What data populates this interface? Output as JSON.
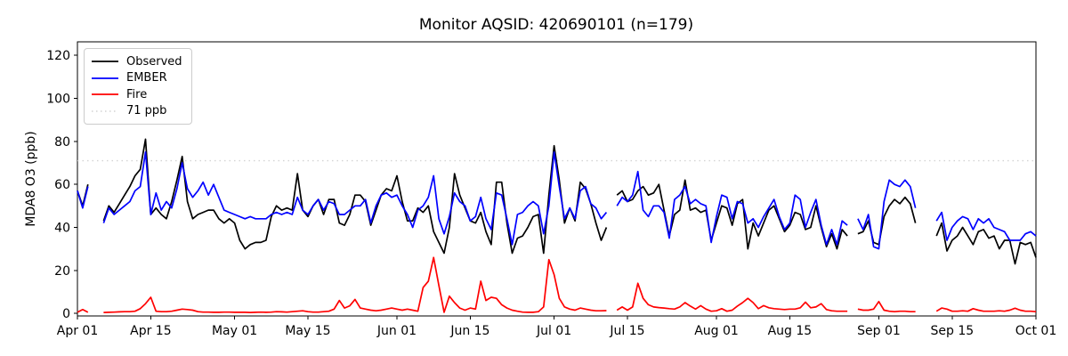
{
  "figure": {
    "title": "Monitor AQSID: 420690101 (n=179)"
  },
  "legend": {
    "position": "upper left"
  },
  "chart_data": {
    "type": "line",
    "title": "Monitor AQSID: 420690101 (n=179)",
    "xlabel": "",
    "ylabel": "MDA8 O3 (ppb)",
    "ylim": [
      -1.2,
      126.3
    ],
    "yticks": [
      0,
      20,
      40,
      60,
      80,
      100,
      120
    ],
    "grid": false,
    "legend_position": "upper left",
    "x_unit": "day index from Apr 01",
    "x_range_days": [
      0,
      183
    ],
    "x_tick_days": [
      0,
      14,
      30,
      44,
      61,
      75,
      91,
      105,
      122,
      136,
      153,
      167,
      183
    ],
    "x_tick_labels": [
      "Apr 01",
      "Apr 15",
      "May 01",
      "May 15",
      "Jun 01",
      "Jun 15",
      "Jul 01",
      "Jul 15",
      "Aug 01",
      "Aug 15",
      "Sep 01",
      "Sep 15",
      "Oct 01"
    ],
    "threshold": {
      "value": 71,
      "label": "71 ppb",
      "color": "#d3d3d3",
      "style": "dotted"
    },
    "note": "null values are missing days (gaps in lines)",
    "series": [
      {
        "name": "Observed",
        "color": "#000000",
        "style": "solid",
        "values": [
          57,
          50,
          60,
          null,
          null,
          43,
          50,
          47,
          51,
          55,
          59,
          64,
          67,
          81,
          46,
          49,
          46,
          44,
          52,
          62,
          73,
          52,
          44,
          46,
          47,
          48,
          48,
          44,
          42,
          44,
          42,
          34,
          30,
          32,
          33,
          33,
          34,
          45,
          50,
          48,
          49,
          48,
          65,
          48,
          45,
          50,
          53,
          46,
          53,
          53,
          42,
          41,
          46,
          55,
          55,
          52,
          41,
          48,
          55,
          58,
          57,
          64,
          52,
          43,
          43,
          49,
          47,
          50,
          38,
          33,
          28,
          40,
          65,
          55,
          49,
          43,
          42,
          47,
          38,
          32,
          61,
          61,
          42,
          28,
          35,
          36,
          40,
          45,
          46,
          28,
          55,
          78,
          62,
          42,
          49,
          43,
          61,
          58,
          51,
          42,
          34,
          40,
          null,
          55,
          57,
          52,
          53,
          57,
          59,
          55,
          56,
          60,
          48,
          36,
          46,
          48,
          62,
          48,
          49,
          47,
          48,
          34,
          42,
          50,
          49,
          41,
          51,
          53,
          30,
          42,
          36,
          42,
          48,
          50,
          44,
          38,
          41,
          47,
          46,
          39,
          40,
          50,
          40,
          31,
          37,
          30,
          39,
          36,
          null,
          37,
          38,
          43,
          33,
          32,
          45,
          50,
          53,
          51,
          54,
          51,
          42,
          null,
          null,
          null,
          36,
          42,
          29,
          34,
          36,
          40,
          36,
          32,
          38,
          39,
          35,
          36,
          30,
          34,
          34,
          23,
          33,
          32,
          33,
          26
        ]
      },
      {
        "name": "EMBER",
        "color": "#0000ff",
        "style": "solid",
        "values": [
          57,
          49,
          59,
          null,
          null,
          42,
          49,
          46,
          48,
          50,
          52,
          57,
          59,
          75,
          46,
          56,
          48,
          52,
          49,
          58,
          70,
          58,
          54,
          57,
          61,
          55,
          60,
          54,
          48,
          47,
          46,
          45,
          44,
          45,
          44,
          44,
          44,
          46,
          47,
          46,
          47,
          46,
          54,
          48,
          46,
          50,
          53,
          48,
          52,
          51,
          46,
          46,
          48,
          50,
          50,
          53,
          42,
          50,
          55,
          56,
          54,
          55,
          50,
          46,
          40,
          48,
          50,
          54,
          64,
          44,
          37,
          45,
          56,
          52,
          50,
          43,
          45,
          54,
          44,
          39,
          56,
          55,
          44,
          32,
          46,
          47,
          50,
          52,
          50,
          37,
          50,
          75,
          59,
          44,
          49,
          44,
          57,
          59,
          51,
          49,
          44,
          47,
          null,
          50,
          54,
          52,
          55,
          66,
          48,
          45,
          50,
          50,
          47,
          35,
          53,
          55,
          59,
          51,
          53,
          51,
          50,
          33,
          45,
          55,
          54,
          44,
          52,
          51,
          42,
          44,
          40,
          45,
          49,
          53,
          45,
          39,
          42,
          55,
          53,
          40,
          47,
          53,
          41,
          32,
          39,
          32,
          43,
          41,
          null,
          44,
          39,
          46,
          31,
          30,
          52,
          62,
          60,
          59,
          62,
          59,
          49,
          null,
          null,
          null,
          43,
          47,
          34,
          40,
          43,
          45,
          44,
          39,
          44,
          42,
          44,
          40,
          39,
          38,
          34,
          34,
          34,
          37,
          38,
          36
        ]
      },
      {
        "name": "Fire",
        "color": "#ff0000",
        "style": "solid",
        "values": [
          0.5,
          1.8,
          0.5,
          null,
          null,
          0.4,
          0.5,
          0.6,
          0.7,
          0.8,
          0.8,
          1,
          2.2,
          4.5,
          7.5,
          1,
          0.8,
          0.8,
          1,
          1.5,
          2,
          1.8,
          1.5,
          0.8,
          0.6,
          0.6,
          0.5,
          0.5,
          0.6,
          0.6,
          0.5,
          0.5,
          0.5,
          0.4,
          0.5,
          0.6,
          0.5,
          0.6,
          0.8,
          0.7,
          0.6,
          0.8,
          1,
          1.2,
          0.8,
          0.6,
          0.6,
          0.8,
          1,
          2,
          6,
          2.5,
          3.5,
          6.5,
          2.5,
          2,
          1.5,
          1.2,
          1.5,
          2,
          2.5,
          2,
          1.5,
          2,
          1.5,
          1,
          12,
          15,
          26,
          13,
          0.5,
          8,
          5,
          2.5,
          1.5,
          2.5,
          2,
          15,
          6,
          7.5,
          7,
          4,
          2.5,
          1.5,
          1,
          0.6,
          0.5,
          0.5,
          0.8,
          3,
          25,
          18,
          7,
          3,
          2,
          1.5,
          2.5,
          2,
          1.5,
          1.2,
          1.2,
          1.3,
          null,
          1.5,
          3,
          1.5,
          3,
          14,
          7,
          4,
          3,
          2.7,
          2.5,
          2.2,
          2,
          3,
          5,
          3.4,
          2,
          3.6,
          2,
          1,
          1.2,
          2.2,
          1,
          1.5,
          3.4,
          5,
          7,
          5,
          2.2,
          3.6,
          2.6,
          2.2,
          2,
          1.8,
          2,
          2,
          2.6,
          5.2,
          2.6,
          3,
          4.5,
          1.8,
          1.2,
          1,
          1,
          1,
          null,
          2,
          1.5,
          1.5,
          2,
          5.5,
          1.5,
          1,
          0.8,
          1,
          1,
          0.8,
          0.8,
          null,
          null,
          null,
          1,
          2.5,
          2,
          1,
          1,
          1.2,
          1,
          2.2,
          1.5,
          1,
          1,
          1,
          1.2,
          1,
          1.5,
          2.4,
          1.5,
          1,
          1,
          0.8
        ]
      }
    ]
  }
}
